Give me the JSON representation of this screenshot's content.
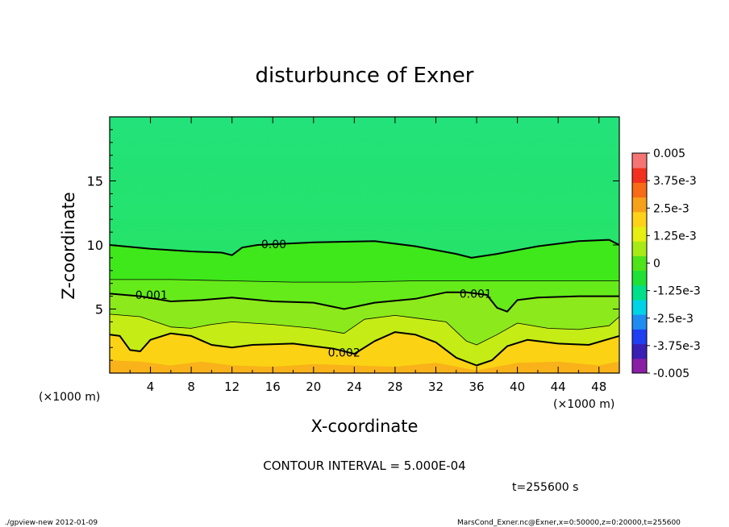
{
  "chart_data": {
    "type": "heatmap",
    "title": "disturbunce of Exner",
    "xlabel": "X-coordinate",
    "ylabel": "Z-coordinate",
    "x_unit_left": "(×1000 m)",
    "x_unit_right": "(×1000 m)",
    "xlim": [
      0,
      50
    ],
    "ylim": [
      0,
      20
    ],
    "x_ticks": [
      4,
      8,
      12,
      16,
      20,
      24,
      28,
      32,
      36,
      40,
      44,
      48
    ],
    "x_tick_labels": [
      "4",
      "8",
      "12",
      "16",
      "20",
      "24",
      "28",
      "32",
      "36",
      "40",
      "44",
      "48"
    ],
    "y_ticks": [
      5,
      10,
      15
    ],
    "y_tick_labels": [
      "5",
      "10",
      "15"
    ],
    "colorbar": {
      "vmin": -0.005,
      "vmax": 0.005,
      "tick_values": [
        0.005,
        0.00375,
        0.0025,
        0.00125,
        0,
        -0.00125,
        -0.0025,
        -0.00375,
        -0.005
      ],
      "tick_labels": [
        "0.005",
        "3.75e-3",
        "2.5e-3",
        "1.25e-3",
        "0",
        "-1.25e-3",
        "-2.5e-3",
        "-3.75e-3",
        "-0.005"
      ],
      "colors": [
        "#8a1fa6",
        "#3a1fb5",
        "#1f3ff0",
        "#1f8cf0",
        "#00d3e6",
        "#00e08a",
        "#1fe036",
        "#4ee31a",
        "#a8ea16",
        "#e6ee12",
        "#ffd21a",
        "#f7a11a",
        "#f76a16",
        "#f2301f",
        "#f57575"
      ]
    },
    "contour_interval_text": "CONTOUR INTERVAL = 5.000E-04",
    "contour_labels": [
      {
        "text": "0.00",
        "x": 16.1,
        "z": 10.05
      },
      {
        "text": "0.001",
        "x": 4.1,
        "z": 6.1
      },
      {
        "text": "0.001",
        "x": 35.9,
        "z": 6.2
      },
      {
        "text": "0.002",
        "x": 23.0,
        "z": 1.6
      }
    ],
    "contours": [
      {
        "level": 0.0,
        "weight": "thick",
        "points": [
          [
            0,
            10.0
          ],
          [
            4,
            9.7
          ],
          [
            8,
            9.5
          ],
          [
            11,
            9.4
          ],
          [
            12,
            9.2
          ],
          [
            13,
            9.8
          ],
          [
            14.5,
            10.0
          ],
          [
            20,
            10.2
          ],
          [
            26,
            10.3
          ],
          [
            30,
            9.9
          ],
          [
            34,
            9.3
          ],
          [
            35.5,
            9.0
          ],
          [
            38,
            9.3
          ],
          [
            42,
            9.9
          ],
          [
            46,
            10.3
          ],
          [
            49,
            10.4
          ],
          [
            50,
            10.0
          ]
        ]
      },
      {
        "level": 0.0005,
        "weight": "thin",
        "points": [
          [
            0,
            7.3
          ],
          [
            6,
            7.3
          ],
          [
            12,
            7.2
          ],
          [
            18,
            7.1
          ],
          [
            24,
            7.1
          ],
          [
            30,
            7.2
          ],
          [
            36,
            7.2
          ],
          [
            42,
            7.2
          ],
          [
            50,
            7.2
          ]
        ]
      },
      {
        "level": 0.001,
        "weight": "thick",
        "points": [
          [
            0,
            6.2
          ],
          [
            3,
            6.0
          ],
          [
            6,
            5.6
          ],
          [
            9,
            5.7
          ],
          [
            12,
            5.9
          ],
          [
            16,
            5.6
          ],
          [
            20,
            5.5
          ],
          [
            23,
            5.0
          ],
          [
            26,
            5.5
          ],
          [
            30,
            5.8
          ],
          [
            33,
            6.3
          ],
          [
            35,
            6.3
          ],
          [
            37,
            6.1
          ],
          [
            38,
            5.1
          ],
          [
            39,
            4.8
          ],
          [
            40,
            5.7
          ],
          [
            42,
            5.9
          ],
          [
            46,
            6.0
          ],
          [
            50,
            6.0
          ]
        ]
      },
      {
        "level": 0.0015,
        "weight": "thin",
        "points": [
          [
            0,
            4.6
          ],
          [
            3,
            4.4
          ],
          [
            6,
            3.6
          ],
          [
            8,
            3.5
          ],
          [
            10,
            3.8
          ],
          [
            12,
            4.0
          ],
          [
            16,
            3.8
          ],
          [
            20,
            3.5
          ],
          [
            23,
            3.1
          ],
          [
            25,
            4.2
          ],
          [
            28,
            4.5
          ],
          [
            31,
            4.2
          ],
          [
            33,
            4.0
          ],
          [
            35,
            2.5
          ],
          [
            36,
            2.2
          ],
          [
            38,
            3.0
          ],
          [
            40,
            3.9
          ],
          [
            43,
            3.5
          ],
          [
            46,
            3.4
          ],
          [
            49,
            3.7
          ],
          [
            50,
            4.4
          ]
        ]
      },
      {
        "level": 0.002,
        "weight": "thick",
        "points": [
          [
            0,
            3.0
          ],
          [
            1,
            2.9
          ],
          [
            2,
            1.8
          ],
          [
            3,
            1.7
          ],
          [
            4,
            2.6
          ],
          [
            6,
            3.1
          ],
          [
            8,
            2.9
          ],
          [
            10,
            2.2
          ],
          [
            12,
            2.0
          ],
          [
            14,
            2.2
          ],
          [
            18,
            2.3
          ],
          [
            22,
            1.9
          ],
          [
            24,
            1.5
          ],
          [
            26,
            2.5
          ],
          [
            28,
            3.2
          ],
          [
            30,
            3.0
          ],
          [
            32,
            2.4
          ],
          [
            34,
            1.2
          ],
          [
            36,
            0.6
          ],
          [
            37.5,
            1.0
          ],
          [
            39,
            2.1
          ],
          [
            41,
            2.6
          ],
          [
            44,
            2.3
          ],
          [
            47,
            2.2
          ],
          [
            50,
            2.9
          ]
        ]
      }
    ],
    "fill_bands": [
      {
        "color": "#3fe81a",
        "points": [
          [
            0,
            10.0
          ],
          [
            4,
            9.7
          ],
          [
            8,
            9.5
          ],
          [
            11,
            9.4
          ],
          [
            12,
            9.2
          ],
          [
            13,
            9.8
          ],
          [
            14.5,
            10.0
          ],
          [
            20,
            10.2
          ],
          [
            26,
            10.3
          ],
          [
            30,
            9.9
          ],
          [
            34,
            9.3
          ],
          [
            35.5,
            9.0
          ],
          [
            38,
            9.3
          ],
          [
            42,
            9.9
          ],
          [
            46,
            10.3
          ],
          [
            49,
            10.4
          ],
          [
            50,
            10.0
          ]
        ]
      },
      {
        "color": "#66eb1a",
        "points": [
          [
            0,
            7.3
          ],
          [
            6,
            7.3
          ],
          [
            12,
            7.2
          ],
          [
            18,
            7.1
          ],
          [
            24,
            7.1
          ],
          [
            30,
            7.2
          ],
          [
            36,
            7.2
          ],
          [
            42,
            7.2
          ],
          [
            50,
            7.2
          ]
        ]
      },
      {
        "color": "#8ce91c",
        "points": [
          [
            0,
            6.2
          ],
          [
            3,
            6.0
          ],
          [
            6,
            5.6
          ],
          [
            9,
            5.7
          ],
          [
            12,
            5.9
          ],
          [
            16,
            5.6
          ],
          [
            20,
            5.5
          ],
          [
            23,
            5.0
          ],
          [
            26,
            5.5
          ],
          [
            30,
            5.8
          ],
          [
            33,
            6.3
          ],
          [
            35,
            6.3
          ],
          [
            37,
            6.1
          ],
          [
            38,
            5.1
          ],
          [
            39,
            4.8
          ],
          [
            40,
            5.7
          ],
          [
            42,
            5.9
          ],
          [
            46,
            6.0
          ],
          [
            50,
            6.0
          ]
        ]
      },
      {
        "color": "#c6ec16",
        "points": [
          [
            0,
            4.6
          ],
          [
            3,
            4.4
          ],
          [
            6,
            3.6
          ],
          [
            8,
            3.5
          ],
          [
            10,
            3.8
          ],
          [
            12,
            4.0
          ],
          [
            16,
            3.8
          ],
          [
            20,
            3.5
          ],
          [
            23,
            3.1
          ],
          [
            25,
            4.2
          ],
          [
            28,
            4.5
          ],
          [
            31,
            4.2
          ],
          [
            33,
            4.0
          ],
          [
            35,
            2.5
          ],
          [
            36,
            2.2
          ],
          [
            38,
            3.0
          ],
          [
            40,
            3.9
          ],
          [
            43,
            3.5
          ],
          [
            46,
            3.4
          ],
          [
            49,
            3.7
          ],
          [
            50,
            4.4
          ]
        ]
      },
      {
        "color": "#fbd214",
        "points": [
          [
            0,
            3.0
          ],
          [
            1,
            2.9
          ],
          [
            2,
            1.8
          ],
          [
            3,
            1.7
          ],
          [
            4,
            2.6
          ],
          [
            6,
            3.1
          ],
          [
            8,
            2.9
          ],
          [
            10,
            2.2
          ],
          [
            12,
            2.0
          ],
          [
            14,
            2.2
          ],
          [
            18,
            2.3
          ],
          [
            22,
            1.9
          ],
          [
            24,
            1.5
          ],
          [
            26,
            2.5
          ],
          [
            28,
            3.2
          ],
          [
            30,
            3.0
          ],
          [
            32,
            2.4
          ],
          [
            34,
            1.2
          ],
          [
            36,
            0.6
          ],
          [
            37.5,
            1.0
          ],
          [
            39,
            2.1
          ],
          [
            41,
            2.6
          ],
          [
            44,
            2.3
          ],
          [
            47,
            2.2
          ],
          [
            50,
            2.9
          ]
        ]
      },
      {
        "color": "#f9b21a",
        "points": [
          [
            0,
            1.0
          ],
          [
            3,
            0.9
          ],
          [
            6,
            0.6
          ],
          [
            9,
            0.9
          ],
          [
            12,
            0.6
          ],
          [
            16,
            0.5
          ],
          [
            20,
            0.7
          ],
          [
            24,
            0.6
          ],
          [
            28,
            0.5
          ],
          [
            32,
            0.8
          ],
          [
            36,
            0.2
          ],
          [
            40,
            0.8
          ],
          [
            44,
            0.9
          ],
          [
            48,
            0.6
          ],
          [
            50,
            0.9
          ]
        ]
      }
    ],
    "base_fill": "#1fe66e",
    "grid": false,
    "legend": "colorbar-right"
  },
  "time_label": "t=255600 s",
  "footer_left": "./gpview-new  2012-01-09",
  "footer_right": "MarsCond_Exner.nc@Exner,x=0:50000,z=0:20000,t=255600"
}
